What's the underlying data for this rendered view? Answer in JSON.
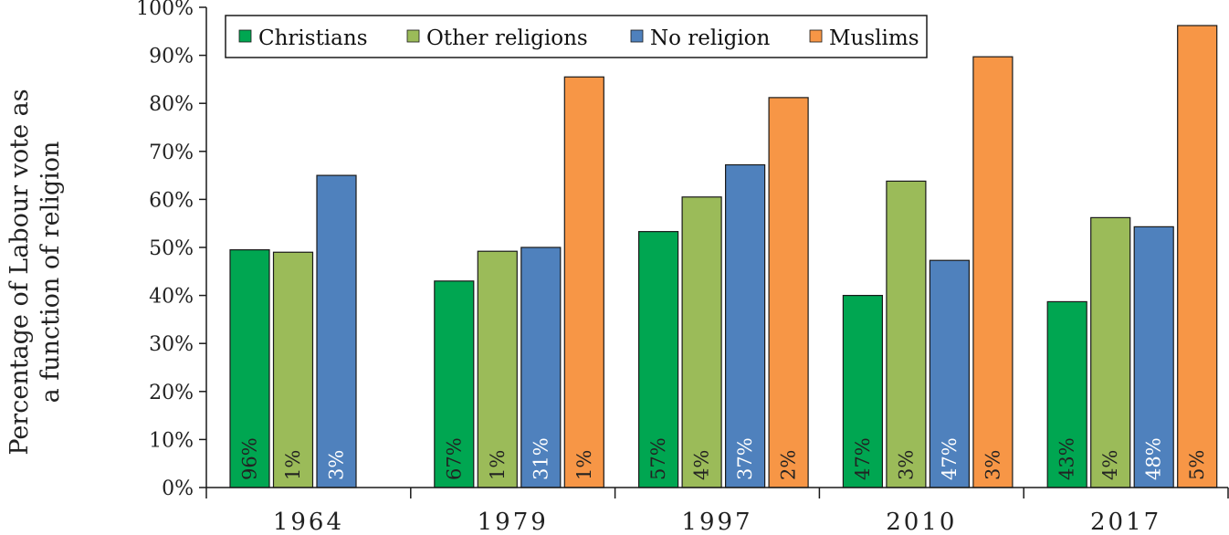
{
  "chart_data": {
    "type": "bar",
    "title": "",
    "xlabel": "",
    "ylabel_lines": [
      "Percentage of Labour vote as",
      "a function of religion"
    ],
    "ylim": [
      0,
      100
    ],
    "yticks": [
      "0%",
      "10%",
      "20%",
      "30%",
      "40%",
      "50%",
      "60%",
      "70%",
      "80%",
      "90%",
      "100%"
    ],
    "categories": [
      "1964",
      "1979",
      "1997",
      "2010",
      "2017"
    ],
    "legend_position": "top-left",
    "grid": false,
    "series": [
      {
        "name": "Christians",
        "color": "#00a651",
        "values": [
          49.5,
          43,
          53.3,
          40,
          38.7
        ],
        "shares": [
          "96%",
          "67%",
          "57%",
          "47%",
          "43%"
        ],
        "share_color": "#222222"
      },
      {
        "name": "Other religions",
        "color": "#9bbb59",
        "values": [
          49,
          49.2,
          60.5,
          63.8,
          56.2
        ],
        "shares": [
          "1%",
          "1%",
          "4%",
          "3%",
          "4%"
        ],
        "share_color": "#222222"
      },
      {
        "name": "No religion",
        "color": "#4f81bd",
        "values": [
          65,
          50,
          67.2,
          47.3,
          54.3
        ],
        "shares": [
          "3%",
          "31%",
          "37%",
          "47%",
          "48%"
        ],
        "share_color": "#ffffff"
      },
      {
        "name": "Muslims",
        "color": "#f79646",
        "values": [
          null,
          85.5,
          81.2,
          89.7,
          96.2
        ],
        "shares": [
          null,
          "1%",
          "2%",
          "3%",
          "5%"
        ],
        "share_color": "#222222"
      }
    ]
  }
}
